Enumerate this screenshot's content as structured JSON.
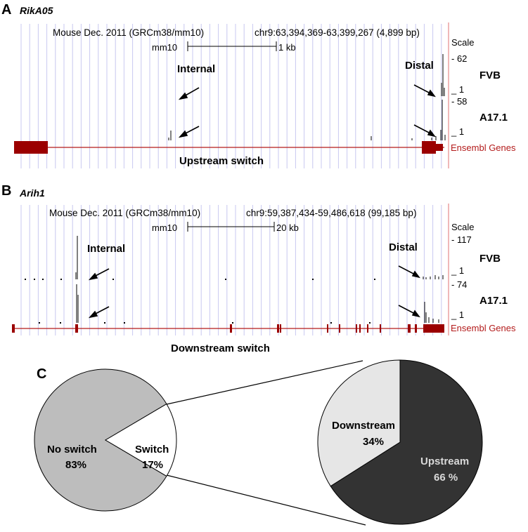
{
  "panelA": {
    "letter": "A",
    "gene": "RikA05",
    "header_left": "Mouse Dec. 2011 (GRCm38/mm10)",
    "header_right": "chr9:63,394,369-63,399,267 (4,899 bp)",
    "scalebar_label": "mm10",
    "scalebar_size": "1 kb",
    "scale_word": "Scale",
    "fvb_max": "62",
    "fvb_min": "1",
    "a17_max": "58",
    "a17_min": "1",
    "track1": "FVB",
    "track2": "A17.1",
    "internal": "Internal",
    "distal": "Distal",
    "ensembl": "Ensembl Genes",
    "caption": "Upstream switch"
  },
  "panelB": {
    "letter": "B",
    "gene": "Arih1",
    "header_left": "Mouse Dec. 2011 (GRCm38/mm10)",
    "header_right": "chr9:59,387,434-59,486,618 (99,185 bp)",
    "scalebar_label": "mm10",
    "scalebar_size": "20 kb",
    "scale_word": "Scale",
    "fvb_max": "117",
    "fvb_min": "1",
    "a17_max": "74",
    "a17_min": "1",
    "track1": "FVB",
    "track2": "A17.1",
    "internal": "Internal",
    "distal": "Distal",
    "ensembl": "Ensembl Genes",
    "caption": "Downstream switch"
  },
  "panelC": {
    "letter": "C",
    "colors": {
      "no_switch": "#bdbdbd",
      "switch": "#ffffff",
      "upstream": "#333333",
      "downstream": "#e6e6e6",
      "gene_track": "#9b0000",
      "grid": "#c8c8f0"
    },
    "chart_data": [
      {
        "type": "pie",
        "slices": [
          {
            "label": "No switch",
            "value": 83,
            "value_text": "83%"
          },
          {
            "label": "Switch",
            "value": 17,
            "value_text": "17%"
          }
        ]
      },
      {
        "type": "pie",
        "slices": [
          {
            "label": "Upstream",
            "value": 66,
            "value_text": "66 %"
          },
          {
            "label": "Downstream",
            "value": 34,
            "value_text": "34%"
          }
        ]
      }
    ]
  }
}
